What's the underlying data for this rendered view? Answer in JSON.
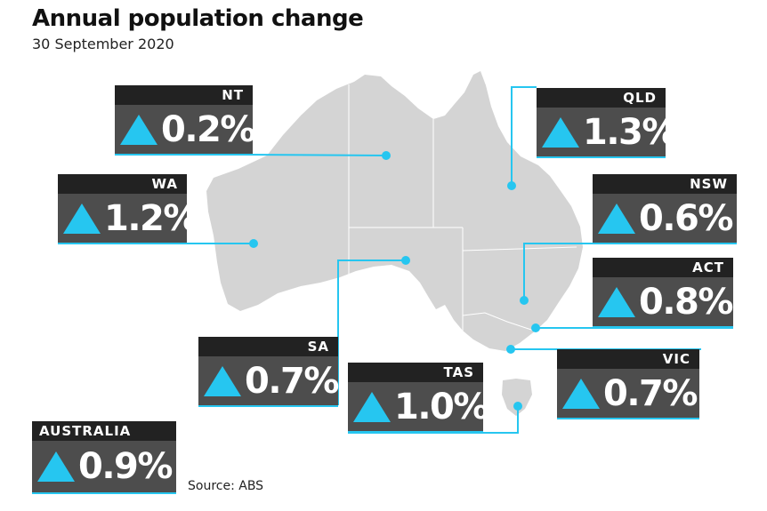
{
  "title": "Annual population change",
  "subtitle": "30 September 2020",
  "source": "Source: ABS",
  "colors": {
    "accent": "#26c6f0",
    "label_bg": "#222222",
    "value_bg": "#4d4d4d",
    "land": "#d4d4d4"
  },
  "icon": "up-triangle-icon",
  "regions": {
    "nt": {
      "label": "NT",
      "change": "0.2%"
    },
    "qld": {
      "label": "QLD",
      "change": "1.3%"
    },
    "wa": {
      "label": "WA",
      "change": "1.2%"
    },
    "nsw": {
      "label": "NSW",
      "change": "0.6%"
    },
    "act": {
      "label": "ACT",
      "change": "0.8%"
    },
    "sa": {
      "label": "SA",
      "change": "0.7%"
    },
    "tas": {
      "label": "TAS",
      "change": "1.0%"
    },
    "vic": {
      "label": "VIC",
      "change": "0.7%"
    },
    "australia": {
      "label": "AUSTRALIA",
      "change": "0.9%"
    }
  }
}
